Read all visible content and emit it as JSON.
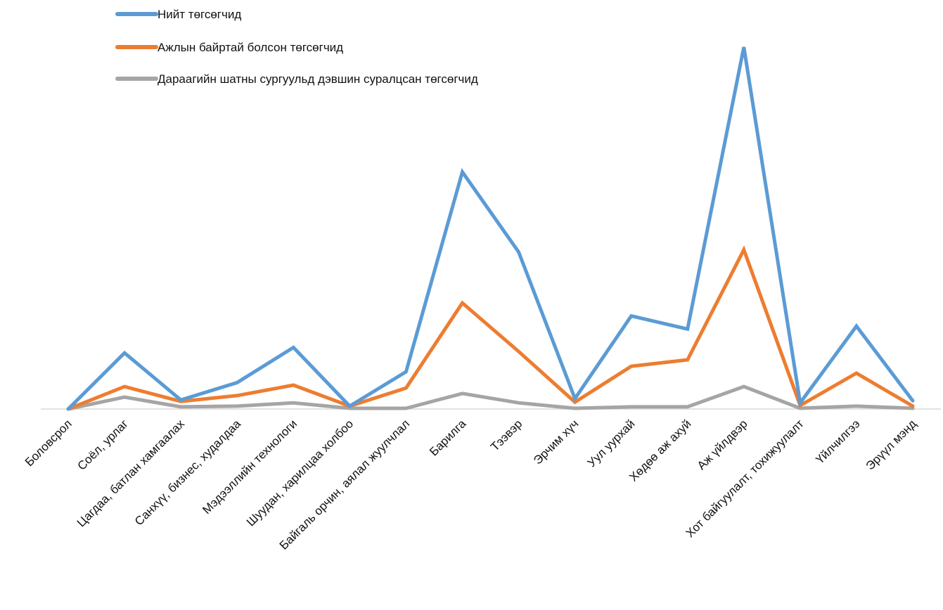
{
  "chart_data": {
    "type": "line",
    "title": "",
    "xlabel": "",
    "ylabel": "",
    "ylim": [
      0,
      100
    ],
    "grid": false,
    "legend": "top-left",
    "categories": [
      "Боловсрол",
      "Соёл, урлаг",
      "Цагдаа, батлан хамгаалах",
      "Санхүү, бизнес, худалдаа",
      "Мэдээллийн технологи",
      "Шуудан, харилцаа холбоо",
      "Байгаль орчин, аялал жуулчлал",
      "Барилга",
      "Тээвэр",
      "Эрчим хүч",
      "Уул уурхай",
      "Хөдөө аж ахуй",
      "Аж үйлдвэр",
      "Хот байгуулалт, тохижуулалт",
      "Үйлчилгээ",
      "Эрүүл мэнд"
    ],
    "series": [
      {
        "name": "Нийт төгсөгчид",
        "color": "#5B9BD5",
        "values": [
          0,
          15.5,
          2.5,
          7.3,
          17,
          0.8,
          10.3,
          65.5,
          43.4,
          2.9,
          25.7,
          22.1,
          100,
          1.7,
          22.9,
          2.3
        ]
      },
      {
        "name": "Ажлын байртай болсон төгсөгчид",
        "color": "#ED7D31",
        "values": [
          0,
          6.2,
          2.1,
          3.7,
          6.6,
          0.8,
          5.8,
          29.3,
          15.9,
          1.9,
          11.8,
          13.6,
          44,
          1,
          9.9,
          0.8
        ]
      },
      {
        "name": "Дараагийн шатны сургуульд дэвшин суралцсан төгсөгчид",
        "color": "#A5A5A5",
        "values": [
          0,
          3.3,
          0.6,
          0.8,
          1.7,
          0.2,
          0.2,
          4.3,
          1.7,
          0.2,
          0.6,
          0.6,
          6.2,
          0.2,
          0.8,
          0.2
        ]
      }
    ]
  }
}
